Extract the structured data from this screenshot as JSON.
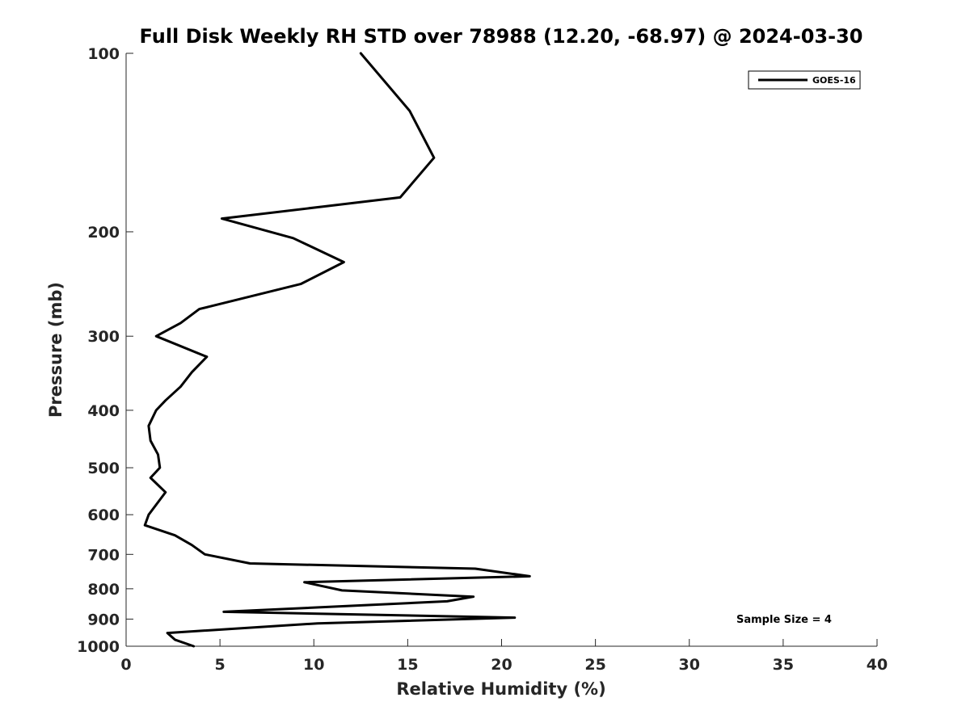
{
  "chart_data": {
    "type": "line",
    "title": "Full Disk Weekly RH STD over 78988 (12.20, -68.97) @ 2024-03-30",
    "xlabel": "Relative Humidity (%)",
    "ylabel": "Pressure (mb)",
    "xlim": [
      0,
      40
    ],
    "ylim": [
      100,
      1000
    ],
    "y_scale": "log",
    "y_reversed": true,
    "grid": false,
    "legend_position": "top-right",
    "x_ticks": [
      0,
      5,
      10,
      15,
      20,
      25,
      30,
      35,
      40
    ],
    "y_ticks": [
      100,
      200,
      300,
      400,
      500,
      600,
      700,
      800,
      900,
      1000
    ],
    "annotation": "Sample Size = 4",
    "series": [
      {
        "name": "GOES-16",
        "color": "#000000",
        "x": [
          12.5,
          15.1,
          16.4,
          14.6,
          5.1,
          8.9,
          11.6,
          9.3,
          3.9,
          2.9,
          1.6,
          4.3,
          3.5,
          2.9,
          2.1,
          1.6,
          1.2,
          1.3,
          1.7,
          1.8,
          1.3,
          2.1,
          1.2,
          1.0,
          2.6,
          3.5,
          4.2,
          6.6,
          18.6,
          21.5,
          9.5,
          11.5,
          18.5,
          17.1,
          5.2,
          20.7,
          10.2,
          2.2,
          2.6,
          3.6
        ],
        "y": [
          100,
          125,
          150,
          175,
          190,
          205,
          225,
          245,
          270,
          285,
          300,
          325,
          345,
          365,
          385,
          400,
          425,
          450,
          475,
          500,
          520,
          550,
          600,
          625,
          650,
          675,
          700,
          725,
          740,
          762,
          780,
          805,
          825,
          840,
          875,
          895,
          915,
          950,
          975,
          1000
        ]
      }
    ]
  }
}
